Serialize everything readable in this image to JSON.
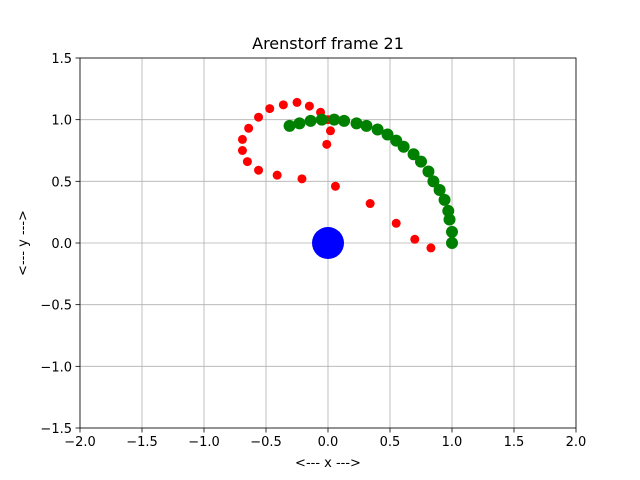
{
  "chart_data": {
    "type": "scatter",
    "title": "Arenstorf frame 21",
    "x_label": "<---  x  --->",
    "y_label": "<---  y  --->",
    "xlim": [
      -2,
      2
    ],
    "ylim": [
      -1.5,
      1.5
    ],
    "xticks": [
      {
        "value": -2,
        "label": "−2.0"
      },
      {
        "value": -1.5,
        "label": "−1.5"
      },
      {
        "value": -1,
        "label": "−1.0"
      },
      {
        "value": -0.5,
        "label": "−0.5"
      },
      {
        "value": 0,
        "label": "0.0"
      },
      0.5,
      {
        "value": 1,
        "label": "1.0"
      },
      1.5,
      {
        "value": 2,
        "label": "2.0"
      }
    ],
    "yticks": [
      {
        "value": -1.5,
        "label": "−1.5"
      },
      {
        "value": -1,
        "label": "−1.0"
      },
      {
        "value": -0.5,
        "label": "−0.5"
      },
      {
        "value": 0,
        "label": "0.0"
      },
      0.5,
      {
        "value": 1,
        "label": "1.0"
      },
      1.5
    ],
    "grid": true,
    "series": [
      {
        "color": "#ff0000",
        "x": [
          1.0,
          0.83,
          0.7,
          0.55,
          0.34,
          0.06,
          -0.21,
          -0.41,
          -0.56,
          -0.65,
          -0.69,
          -0.69,
          -0.64,
          -0.56,
          -0.47,
          -0.36,
          -0.25,
          -0.15,
          -0.06,
          0.0,
          0.02,
          -0.01
        ],
        "y": [
          0.0,
          -0.04,
          0.03,
          0.16,
          0.32,
          0.46,
          0.52,
          0.55,
          0.59,
          0.66,
          0.75,
          0.84,
          0.93,
          1.02,
          1.09,
          1.12,
          1.14,
          1.11,
          1.06,
          1.0,
          0.91,
          0.8
        ]
      },
      {
        "color": "#008000",
        "x": [
          1.0,
          1.0,
          0.98,
          0.97,
          0.94,
          0.9,
          0.85,
          0.81,
          0.75,
          0.69,
          0.61,
          0.55,
          0.48,
          0.4,
          0.31,
          0.23,
          0.13,
          0.05,
          -0.05,
          -0.14,
          -0.23,
          -0.31
        ],
        "y": [
          0.0,
          0.09,
          0.19,
          0.26,
          0.35,
          0.43,
          0.5,
          0.58,
          0.66,
          0.72,
          0.78,
          0.83,
          0.88,
          0.92,
          0.95,
          0.97,
          0.99,
          1.0,
          1.0,
          0.99,
          0.97,
          0.95
        ]
      },
      {
        "color": "#0000ff",
        "x": [
          0
        ],
        "y": [
          0
        ]
      }
    ]
  }
}
